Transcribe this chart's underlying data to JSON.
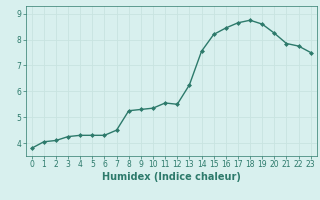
{
  "x": [
    0,
    1,
    2,
    3,
    4,
    5,
    6,
    7,
    8,
    9,
    10,
    11,
    12,
    13,
    14,
    15,
    16,
    17,
    18,
    19,
    20,
    21,
    22,
    23
  ],
  "y": [
    3.8,
    4.05,
    4.1,
    4.25,
    4.3,
    4.3,
    4.3,
    4.5,
    5.25,
    5.3,
    5.35,
    5.55,
    5.5,
    6.25,
    7.55,
    8.2,
    8.45,
    8.65,
    8.75,
    8.6,
    8.25,
    7.85,
    7.75,
    7.5
  ],
  "xlim": [
    -0.5,
    23.5
  ],
  "ylim": [
    3.5,
    9.3
  ],
  "yticks": [
    4,
    5,
    6,
    7,
    8,
    9
  ],
  "xticks": [
    0,
    1,
    2,
    3,
    4,
    5,
    6,
    7,
    8,
    9,
    10,
    11,
    12,
    13,
    14,
    15,
    16,
    17,
    18,
    19,
    20,
    21,
    22,
    23
  ],
  "xlabel": "Humidex (Indice chaleur)",
  "line_color": "#2d7a6b",
  "marker": "D",
  "marker_size": 2,
  "bg_color": "#d8f0ee",
  "grid_color": "#c8e4e0",
  "tick_fontsize": 5.5,
  "label_fontsize": 7,
  "line_width": 1.0
}
